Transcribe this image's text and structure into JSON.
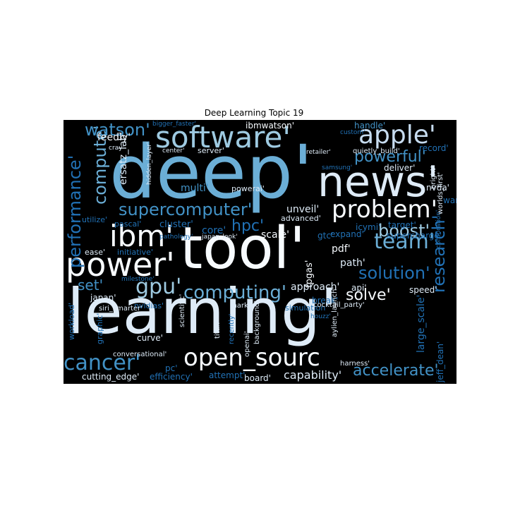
{
  "chart_data": {
    "type": "wordcloud",
    "title": "Deep Learning Topic 19",
    "background": "#000000",
    "colormap": [
      "#08306b",
      "#2171b5",
      "#6baed6",
      "#c6dbef",
      "#f7fbff"
    ],
    "words": [
      {
        "text": "learning'",
        "color": "#deebf7"
      },
      {
        "text": "tool'",
        "color": "#f7fbff"
      },
      {
        "text": "deep'",
        "color": "#6baed6"
      },
      {
        "text": "news'",
        "color": "#deebf7"
      },
      {
        "text": "software'",
        "color": "#9ecae1"
      },
      {
        "text": "apple'",
        "color": "#c6dbef"
      },
      {
        "text": "power'",
        "color": "#f7fbff"
      },
      {
        "text": "ibm'",
        "color": "#f7fbff"
      },
      {
        "text": "team'",
        "color": "#6baed6"
      },
      {
        "text": "problem'",
        "color": "#f7fbff"
      },
      {
        "text": "open_sourc",
        "color": "#f7fbff"
      },
      {
        "text": "cancer'",
        "color": "#4292c6"
      },
      {
        "text": "gpu'",
        "color": "#9ecae1"
      },
      {
        "text": "computing'",
        "color": "#6baed6"
      },
      {
        "text": "research'",
        "color": "#2171b5"
      },
      {
        "text": "solution'",
        "color": "#2171b5"
      },
      {
        "text": "boost'",
        "color": "#9ecae1"
      },
      {
        "text": "supercomputer'",
        "color": "#4292c6"
      },
      {
        "text": "performance'",
        "color": "#2171b5"
      },
      {
        "text": "compute'",
        "color": "#6baed6"
      },
      {
        "text": "watson'",
        "color": "#4292c6"
      },
      {
        "text": "accelerate'",
        "color": "#4292c6"
      },
      {
        "text": "solve'",
        "color": "#f7fbff"
      },
      {
        "text": "powerful'",
        "color": "#4292c6"
      },
      {
        "text": "hpc'",
        "color": "#2171b5"
      },
      {
        "text": "large_scale'",
        "color": "#2171b5"
      },
      {
        "text": "set'",
        "color": "#4292c6"
      },
      {
        "text": "capability'",
        "color": "#deebf7"
      },
      {
        "text": "fpgas'",
        "color": "#f7fbff"
      },
      {
        "text": "approach'",
        "color": "#deebf7"
      },
      {
        "text": "feedly'",
        "color": "#f7fbff"
      },
      {
        "text": "ersatz_lab'",
        "color": "#deebf7"
      },
      {
        "text": "unveil'",
        "color": "#deebf7"
      },
      {
        "text": "scale'",
        "color": "#f7fbff"
      },
      {
        "text": "pdf'",
        "color": "#f7fbff"
      },
      {
        "text": "path'",
        "color": "#deebf7"
      },
      {
        "text": "multi'",
        "color": "#4292c6"
      },
      {
        "text": "core'",
        "color": "#2171b5"
      },
      {
        "text": "cluster'",
        "color": "#2171b5"
      },
      {
        "text": "api'",
        "color": "#deebf7"
      },
      {
        "text": "speed'",
        "color": "#deebf7"
      },
      {
        "text": "break'",
        "color": "#2171b5"
      },
      {
        "text": "simulation'",
        "color": "#2171b5"
      },
      {
        "text": "expand'",
        "color": "#2171b5"
      },
      {
        "text": "gtc'",
        "color": "#2171b5"
      },
      {
        "text": "record'",
        "color": "#2171b5"
      },
      {
        "text": "deliver'",
        "color": "#deebf7"
      },
      {
        "text": "nvda'",
        "color": "#deebf7"
      },
      {
        "text": "target'",
        "color": "#2171b5"
      },
      {
        "text": "supercharge'",
        "color": "#2171b5"
      },
      {
        "text": "war'",
        "color": "#2171b5"
      },
      {
        "text": "icymi'",
        "color": "#2171b5"
      },
      {
        "text": "jeff_dean'",
        "color": "#2171b5"
      },
      {
        "text": "board'",
        "color": "#deebf7"
      },
      {
        "text": "efficiency'",
        "color": "#2171b5"
      },
      {
        "text": "pc'",
        "color": "#2171b5"
      },
      {
        "text": "cutting_edge'",
        "color": "#deebf7"
      },
      {
        "text": "attempt'",
        "color": "#2171b5"
      },
      {
        "text": "curve'",
        "color": "#deebf7"
      },
      {
        "text": "conversational'",
        "color": "#deebf7"
      },
      {
        "text": "scientific'",
        "color": "#deebf7"
      },
      {
        "text": "titan'",
        "color": "#deebf7"
      },
      {
        "text": "recently'",
        "color": "#2171b5"
      },
      {
        "text": "background'",
        "color": "#deebf7"
      },
      {
        "text": "openai'",
        "color": "#deebf7"
      },
      {
        "text": "harness'",
        "color": "#deebf7"
      },
      {
        "text": "aylien_launch'",
        "color": "#deebf7"
      },
      {
        "text": "cocktail_party'",
        "color": "#deebf7"
      },
      {
        "text": "mark'",
        "color": "#deebf7"
      },
      {
        "text": "nvidias'",
        "color": "#2171b5"
      },
      {
        "text": "siri_smarter'",
        "color": "#deebf7"
      },
      {
        "text": "japan'",
        "color": "#deebf7"
      },
      {
        "text": "graphic'",
        "color": "#2171b5"
      },
      {
        "text": "workload'",
        "color": "#2171b5"
      },
      {
        "text": "ease'",
        "color": "#deebf7"
      },
      {
        "text": "initiative'",
        "color": "#2171b5"
      },
      {
        "text": "utilize'",
        "color": "#2171b5"
      },
      {
        "text": "pascal'",
        "color": "#2171b5"
      },
      {
        "text": "pathology'",
        "color": "#2171b5"
      },
      {
        "text": "japan_look'",
        "color": "#deebf7"
      },
      {
        "text": "advanced'",
        "color": "#deebf7"
      },
      {
        "text": "powerai'",
        "color": "#deebf7"
      },
      {
        "text": "hidden_layer'",
        "color": "#deebf7"
      },
      {
        "text": "server'",
        "color": "#deebf7"
      },
      {
        "text": "center'",
        "color": "#deebf7"
      },
      {
        "text": "cray'",
        "color": "#deebf7"
      },
      {
        "text": "bigger_faster'",
        "color": "#2171b5"
      },
      {
        "text": "ibmwatson'",
        "color": "#f7fbff"
      },
      {
        "text": "handle'",
        "color": "#4292c6"
      },
      {
        "text": "custom'",
        "color": "#2171b5"
      },
      {
        "text": "quietly_build'",
        "color": "#deebf7"
      },
      {
        "text": "retailer'",
        "color": "#deebf7"
      },
      {
        "text": "samsung'",
        "color": "#2171b5"
      },
      {
        "text": "bright'",
        "color": "#deebf7"
      },
      {
        "text": "worlds_first'",
        "color": "#deebf7"
      },
      {
        "text": "corporation'",
        "color": "#2171b5"
      },
      {
        "text": "milestone'",
        "color": "#2171b5"
      },
      {
        "text": "houzz'",
        "color": "#2171b5"
      }
    ]
  }
}
